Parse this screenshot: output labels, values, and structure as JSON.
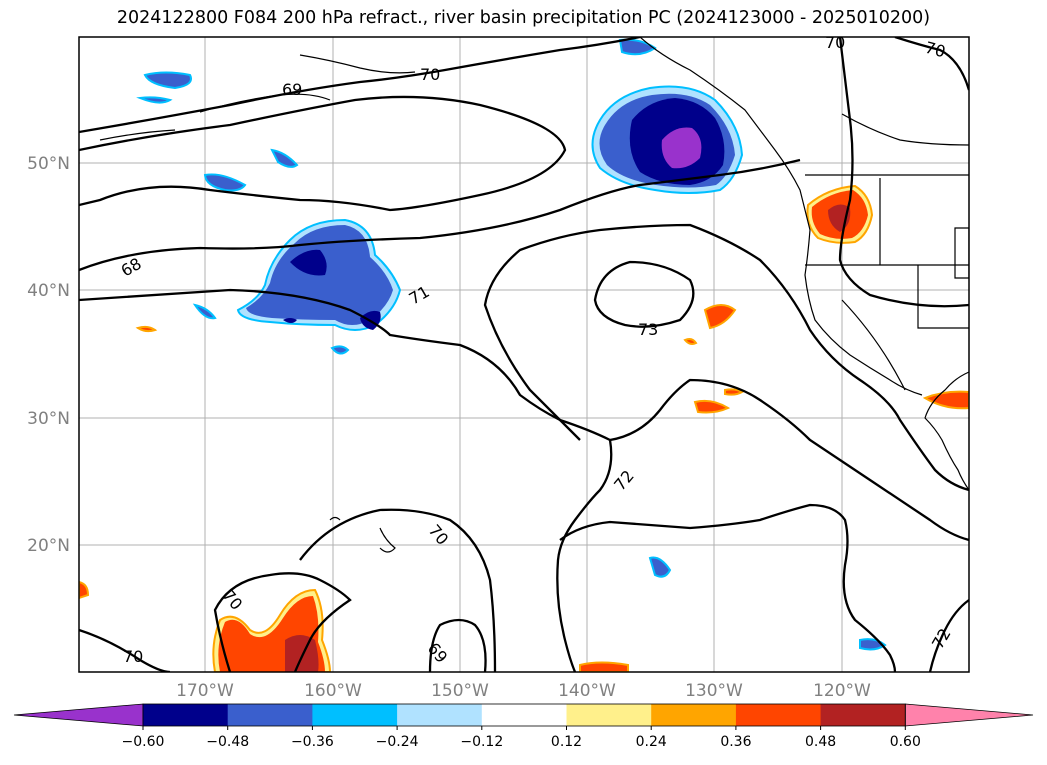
{
  "title": "2024122800 F084 200 hPa refract., river basin precipitation PC (2024123000 - 2025010200)",
  "axes": {
    "lon_labels": [
      "170°W",
      "160°W",
      "150°W",
      "140°W",
      "130°W",
      "120°W"
    ],
    "lat_labels": [
      "50°N",
      "40°N",
      "30°N",
      "20°N"
    ]
  },
  "contour_labels": [
    "70",
    "70",
    "69",
    "70",
    "68",
    "71",
    "73",
    "72",
    "70",
    "70",
    "70",
    "69",
    "72"
  ],
  "colorbar": {
    "colors": [
      "#9932cc",
      "#00008b",
      "#3a5fcd",
      "#00bfff",
      "#b0e2ff",
      "#ffffff",
      "#fff08b",
      "#ffa500",
      "#ff4500",
      "#b22222",
      "#ff82ab"
    ],
    "tick_labels": [
      "−0.60",
      "−0.48",
      "−0.36",
      "−0.24",
      "−0.12",
      "0.12",
      "0.24",
      "0.36",
      "0.48",
      "0.60"
    ]
  }
}
